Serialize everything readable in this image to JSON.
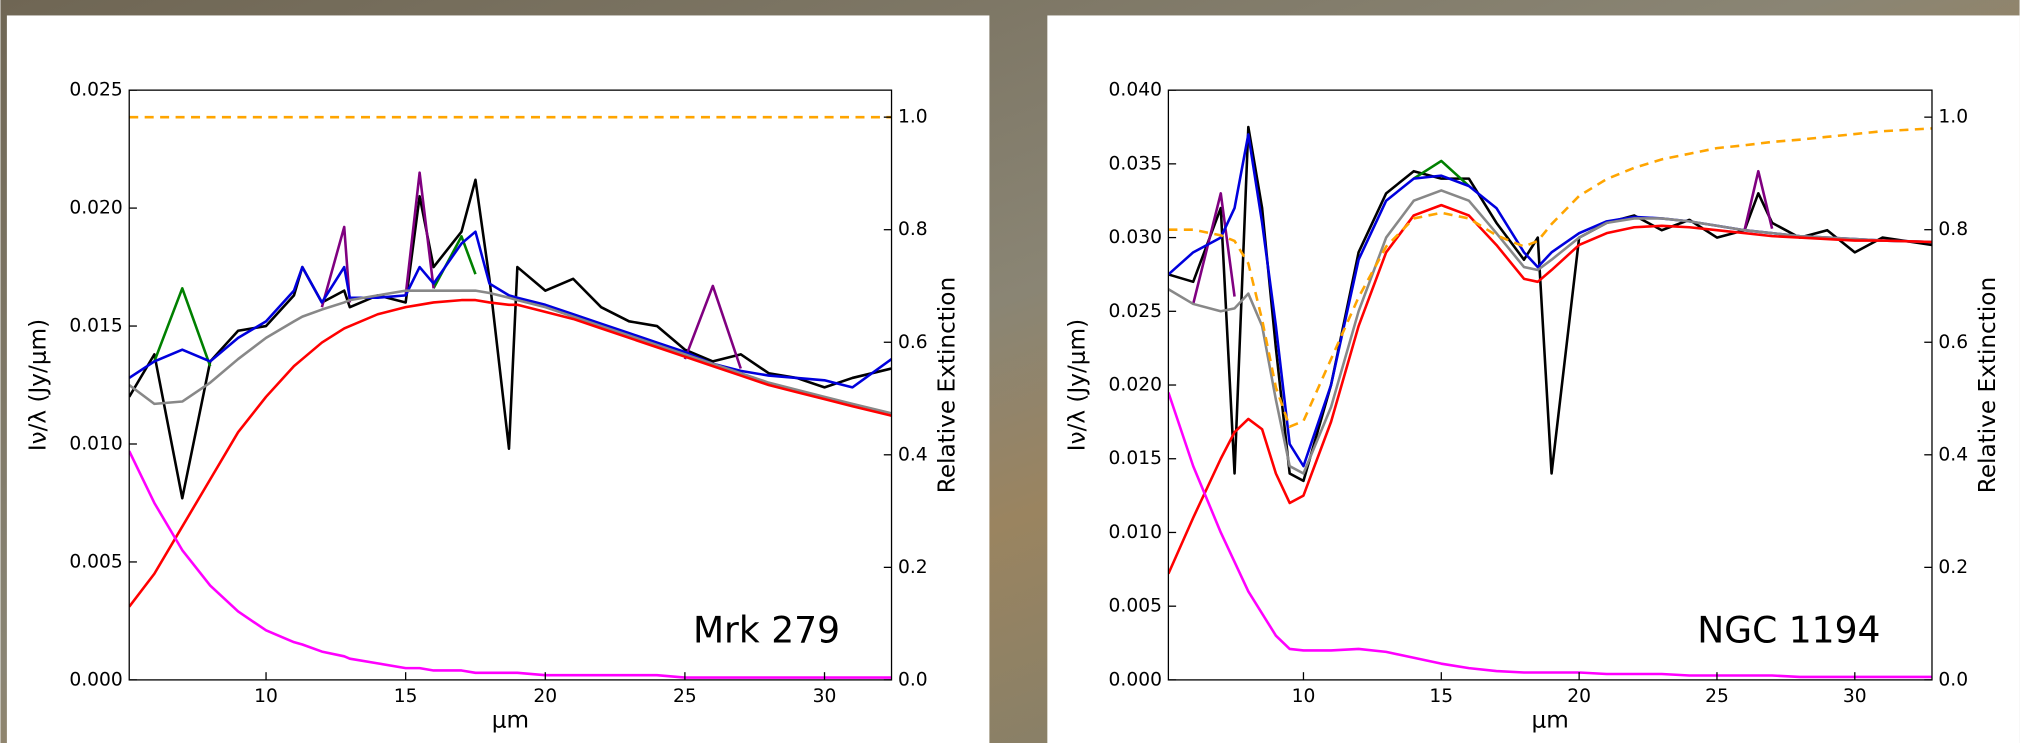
{
  "chart_data": [
    {
      "type": "line",
      "annotation": "Mrk 279",
      "xlabel": "μm",
      "ylabel": "Iν/λ (Jy/μm)",
      "y2label": "Relative Extinction",
      "grid": false,
      "x": [
        5.1,
        6,
        7,
        8,
        9,
        10,
        11,
        11.3,
        12,
        12.8,
        13,
        14,
        15,
        15.5,
        16,
        17,
        17.5,
        18,
        18.7,
        19,
        20,
        21,
        22,
        23,
        24,
        25,
        26,
        27,
        28,
        29,
        30,
        31,
        32.4
      ],
      "xlim": [
        5.1,
        32.4
      ],
      "xticks": [
        10,
        15,
        20,
        25,
        30
      ],
      "ylim": [
        0,
        0.025
      ],
      "yticks": [
        {
          "value": 0,
          "label": "0.000"
        },
        0.005,
        {
          "value": 0.01,
          "label": "0.010"
        },
        0.015,
        {
          "value": 0.02,
          "label": "0.020"
        },
        0.025
      ],
      "y2lim": [
        0,
        1.048
      ],
      "y2ticks": [
        {
          "value": 0,
          "label": "0.0"
        },
        0.2,
        0.4,
        0.6,
        0.8,
        {
          "value": 1,
          "label": "1.0"
        }
      ],
      "series": [
        {
          "color": "#000000",
          "values": [
            0.012,
            0.0138,
            0.0077,
            0.0135,
            0.0148,
            0.015,
            0.0163,
            0.0175,
            0.016,
            0.0165,
            0.0158,
            0.0163,
            0.016,
            0.0205,
            0.0175,
            0.019,
            0.0212,
            0.017,
            0.0098,
            0.0175,
            0.0165,
            0.017,
            0.0158,
            0.0152,
            0.015,
            0.014,
            0.0135,
            0.0138,
            0.013,
            0.0128,
            0.0124,
            0.0128,
            0.0132
          ]
        },
        {
          "color": "#008000",
          "values": [
            null,
            0.0135,
            0.0166,
            0.0133,
            null,
            null,
            null,
            null,
            null,
            null,
            null,
            null,
            null,
            null,
            0.0166,
            0.0188,
            0.0172,
            null,
            null,
            null,
            null,
            null,
            null,
            null,
            null,
            null,
            null,
            null,
            null,
            null,
            null,
            null,
            null
          ]
        },
        {
          "color": "#800080",
          "values": [
            null,
            null,
            null,
            null,
            null,
            null,
            null,
            null,
            0.0158,
            0.0192,
            0.016,
            null,
            0.0163,
            0.0215,
            0.0166,
            null,
            null,
            null,
            null,
            null,
            null,
            null,
            null,
            null,
            null,
            0.0136,
            0.0167,
            0.0132,
            null,
            null,
            null,
            null,
            null
          ]
        },
        {
          "color": "#0000dd",
          "values": [
            0.0128,
            0.0135,
            0.014,
            0.0135,
            0.0145,
            0.0152,
            0.0165,
            0.0175,
            0.016,
            0.0175,
            0.0162,
            0.0162,
            0.0163,
            0.0175,
            0.0168,
            0.0185,
            0.019,
            0.0168,
            0.0163,
            0.0162,
            0.0159,
            0.0155,
            0.0151,
            0.0147,
            0.0143,
            0.0139,
            0.0134,
            0.0131,
            0.0129,
            0.0128,
            0.0127,
            0.0124,
            0.0136
          ]
        },
        {
          "color": "#888888",
          "values": [
            0.0125,
            0.0117,
            0.0118,
            0.0126,
            0.0136,
            0.0145,
            0.0152,
            0.0154,
            0.0157,
            0.016,
            0.0161,
            0.0163,
            0.0165,
            0.0165,
            0.0165,
            0.0165,
            0.0165,
            0.0164,
            0.0162,
            0.0161,
            0.0158,
            0.0154,
            0.015,
            0.0146,
            0.0142,
            0.0138,
            0.0134,
            0.013,
            0.0126,
            0.0123,
            0.012,
            0.0117,
            0.0113
          ]
        },
        {
          "color": "#ff0000",
          "values": [
            0.0031,
            0.0045,
            0.0065,
            0.0085,
            0.0105,
            0.012,
            0.0133,
            0.0136,
            0.0143,
            0.0149,
            0.015,
            0.0155,
            0.0158,
            0.0159,
            0.016,
            0.0161,
            0.0161,
            0.016,
            0.0159,
            0.0159,
            0.0156,
            0.0153,
            0.0149,
            0.0145,
            0.0141,
            0.0137,
            0.0133,
            0.0129,
            0.0125,
            0.0122,
            0.0119,
            0.0116,
            0.0112
          ]
        },
        {
          "color": "#ff00ff",
          "values": [
            0.0097,
            0.0075,
            0.0055,
            0.004,
            0.0029,
            0.0021,
            0.0016,
            0.0015,
            0.0012,
            0.001,
            0.0009,
            0.0007,
            0.0005,
            0.0005,
            0.0004,
            0.0004,
            0.0003,
            0.0003,
            0.0003,
            0.0003,
            0.0002,
            0.0002,
            0.0002,
            0.0002,
            0.0002,
            0.0001,
            0.0001,
            0.0001,
            0.0001,
            0.0001,
            0.0001,
            0.0001,
            0.0001
          ]
        },
        {
          "color": "#ffa500",
          "dashed": true,
          "axis": "y2",
          "values": [
            1,
            1,
            1,
            1,
            1,
            1,
            1,
            1,
            1,
            1,
            1,
            1,
            1,
            1,
            1,
            1,
            1,
            1,
            1,
            1,
            1,
            1,
            1,
            1,
            1,
            1,
            1,
            1,
            1,
            1,
            1,
            1,
            1
          ]
        }
      ]
    },
    {
      "type": "line",
      "annotation": "NGC 1194",
      "xlabel": "μm",
      "ylabel": "Iν/λ (Jy/μm)",
      "y2label": "Relative Extinction",
      "grid": false,
      "x": [
        5.1,
        6,
        7,
        7.5,
        8,
        8.5,
        9,
        9.5,
        10,
        11,
        12,
        13,
        14,
        15,
        16,
        17,
        18,
        18.5,
        19,
        20,
        21,
        22,
        23,
        24,
        25,
        26,
        26.5,
        27,
        28,
        29,
        30,
        31,
        32.8
      ],
      "xlim": [
        5.1,
        32.8
      ],
      "xticks": [
        10,
        15,
        20,
        25,
        30
      ],
      "ylim": [
        0,
        0.04
      ],
      "yticks": [
        {
          "value": 0,
          "label": "0.000"
        },
        0.005,
        {
          "value": 0.01,
          "label": "0.010"
        },
        0.015,
        {
          "value": 0.02,
          "label": "0.020"
        },
        0.025,
        {
          "value": 0.03,
          "label": "0.030"
        },
        0.035,
        {
          "value": 0.04,
          "label": "0.040"
        }
      ],
      "y2lim": [
        0,
        1.048
      ],
      "y2ticks": [
        {
          "value": 0,
          "label": "0.0"
        },
        0.2,
        0.4,
        0.6,
        0.8,
        {
          "value": 1,
          "label": "1.0"
        }
      ],
      "series": [
        {
          "color": "#000000",
          "values": [
            0.0275,
            0.027,
            0.032,
            0.014,
            0.0375,
            0.032,
            0.0225,
            0.014,
            0.0135,
            0.02,
            0.029,
            0.033,
            0.0345,
            0.034,
            0.034,
            0.031,
            0.0285,
            0.03,
            0.014,
            0.03,
            0.031,
            0.0315,
            0.0305,
            0.0312,
            0.03,
            0.0305,
            0.033,
            0.031,
            0.03,
            0.0305,
            0.029,
            0.03,
            0.0295
          ]
        },
        {
          "color": "#008000",
          "values": [
            null,
            null,
            null,
            null,
            null,
            null,
            null,
            null,
            null,
            null,
            null,
            null,
            0.034,
            0.0352,
            0.0335,
            null,
            null,
            null,
            null,
            null,
            null,
            null,
            null,
            null,
            null,
            null,
            null,
            null,
            null,
            null,
            null,
            null,
            null
          ]
        },
        {
          "color": "#800080",
          "values": [
            null,
            0.0255,
            0.033,
            0.026,
            null,
            null,
            null,
            null,
            null,
            null,
            null,
            null,
            null,
            null,
            null,
            null,
            null,
            null,
            null,
            null,
            null,
            null,
            null,
            null,
            null,
            0.0305,
            0.0345,
            0.0306,
            null,
            null,
            null,
            null,
            null
          ]
        },
        {
          "color": "#0000dd",
          "values": [
            0.0275,
            0.029,
            0.03,
            0.032,
            0.037,
            0.031,
            0.024,
            0.016,
            0.0145,
            0.02,
            0.0285,
            0.0325,
            0.034,
            0.0342,
            0.0335,
            0.032,
            0.029,
            0.028,
            0.029,
            0.0303,
            0.0311,
            0.0314,
            0.0313,
            0.0311,
            0.0308,
            0.0305,
            0.0304,
            0.0303,
            0.0301,
            0.03,
            0.0299,
            0.0298,
            0.0297
          ]
        },
        {
          "color": "#888888",
          "values": [
            0.0265,
            0.0255,
            0.025,
            0.0252,
            0.0262,
            0.024,
            0.019,
            0.0145,
            0.014,
            0.0185,
            0.025,
            0.03,
            0.0325,
            0.0332,
            0.0325,
            0.0303,
            0.028,
            0.0278,
            0.0285,
            0.03,
            0.031,
            0.0313,
            0.0313,
            0.0311,
            0.0308,
            0.0305,
            0.0304,
            0.0303,
            0.0301,
            0.03,
            0.0299,
            0.0298,
            0.0297
          ]
        },
        {
          "color": "#ff0000",
          "values": [
            0.0072,
            0.011,
            0.015,
            0.0168,
            0.0177,
            0.017,
            0.014,
            0.012,
            0.0125,
            0.0175,
            0.024,
            0.029,
            0.0315,
            0.0322,
            0.0315,
            0.0295,
            0.0272,
            0.027,
            0.0278,
            0.0295,
            0.0303,
            0.0307,
            0.0308,
            0.0307,
            0.0305,
            0.0303,
            0.0302,
            0.0301,
            0.03,
            0.0299,
            0.0298,
            0.0298,
            0.0297
          ]
        },
        {
          "color": "#ff00ff",
          "values": [
            0.0195,
            0.0145,
            0.01,
            0.008,
            0.006,
            0.0045,
            0.003,
            0.0021,
            0.002,
            0.002,
            0.0021,
            0.0019,
            0.0015,
            0.0011,
            0.0008,
            0.0006,
            0.0005,
            0.0005,
            0.0005,
            0.0005,
            0.0004,
            0.0004,
            0.0004,
            0.0003,
            0.0003,
            0.0003,
            0.0003,
            0.0003,
            0.0002,
            0.0002,
            0.0002,
            0.0002,
            0.0002
          ]
        },
        {
          "color": "#ffa500",
          "dashed": true,
          "axis": "y2",
          "values": [
            0.8,
            0.8,
            0.79,
            0.78,
            0.74,
            0.64,
            0.52,
            0.45,
            0.46,
            0.57,
            0.68,
            0.77,
            0.82,
            0.83,
            0.82,
            0.79,
            0.77,
            0.78,
            0.81,
            0.86,
            0.89,
            0.91,
            0.925,
            0.935,
            0.945,
            0.95,
            0.953,
            0.956,
            0.96,
            0.965,
            0.97,
            0.975,
            0.98
          ]
        }
      ]
    }
  ]
}
